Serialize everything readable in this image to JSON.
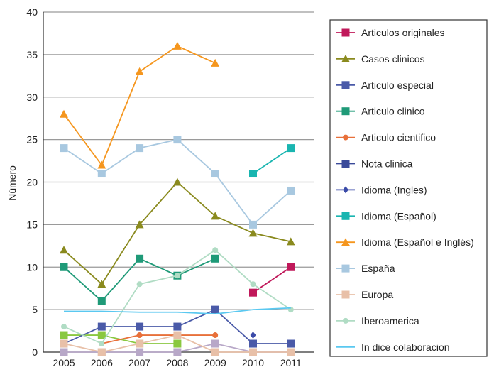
{
  "chart_data": {
    "type": "line",
    "ylabel": "Número",
    "xlabel": "",
    "ylim": [
      0,
      40
    ],
    "yticks": [
      0,
      5,
      10,
      15,
      20,
      25,
      30,
      35,
      40
    ],
    "grid": true,
    "legend_position": "right",
    "categories": [
      "2005",
      "2006",
      "2007",
      "2008",
      "2009",
      "2010",
      "2011"
    ],
    "series": [
      {
        "name": "Articulos originales",
        "color": "#c0185a",
        "marker": "square",
        "values": [
          null,
          null,
          null,
          null,
          null,
          7,
          10
        ]
      },
      {
        "name": "Casos clinicos",
        "color": "#8a8a1e",
        "marker": "triangle",
        "values": [
          12,
          8,
          15,
          20,
          16,
          14,
          13
        ]
      },
      {
        "name": "Articulo especial",
        "color": "#4a5aa8",
        "marker": "square",
        "values": [
          1,
          3,
          3,
          3,
          5,
          1,
          1
        ]
      },
      {
        "name": "Articulo clinico",
        "color": "#1f9a78",
        "marker": "square",
        "values": [
          10,
          6,
          11,
          9,
          11,
          null,
          null
        ]
      },
      {
        "name": "Articulo cientifico",
        "color": "#e8703a",
        "marker": "circle",
        "values": [
          null,
          1,
          2,
          2,
          2,
          null,
          null
        ]
      },
      {
        "name": "Nota clinica",
        "color": "#3a4a9a",
        "marker": "square",
        "values": [
          null,
          null,
          null,
          null,
          null,
          null,
          null
        ]
      },
      {
        "name": "Idioma (Ingles)",
        "color": "#3a4aa8",
        "marker": "diamond",
        "values": [
          null,
          null,
          null,
          null,
          null,
          2,
          null
        ]
      },
      {
        "name": "Idioma (Español)",
        "color": "#19b5b0",
        "marker": "square",
        "values": [
          null,
          null,
          null,
          null,
          null,
          21,
          24
        ]
      },
      {
        "name": "Idioma (Español e Inglés)",
        "color": "#f5961e",
        "marker": "triangle",
        "values": [
          28,
          22,
          33,
          36,
          34,
          null,
          null
        ]
      },
      {
        "name": "España",
        "color": "#a8c8e0",
        "marker": "square",
        "values": [
          24,
          21,
          24,
          25,
          21,
          15,
          19
        ]
      },
      {
        "name": "Europa",
        "color": "#e8c0a8",
        "marker": "square",
        "values": [
          1,
          0,
          1,
          2,
          0,
          0,
          0
        ]
      },
      {
        "name": "Iberoamerica",
        "color": "#b0dcc4",
        "marker": "circle",
        "values": [
          3,
          1,
          8,
          9,
          12,
          8,
          5
        ]
      },
      {
        "name": "In dice colaboracion",
        "color": "#5ac8f0",
        "marker": "none",
        "values": [
          4.8,
          4.8,
          4.7,
          4.7,
          4.5,
          5.0,
          5.2
        ]
      }
    ],
    "extra_lines": [
      {
        "color": "#8ac840",
        "values": [
          2,
          2,
          1,
          1,
          null,
          null,
          null
        ]
      },
      {
        "color": "#b8a8c8",
        "values": [
          0,
          0,
          0,
          0,
          1,
          0,
          0
        ]
      }
    ]
  }
}
